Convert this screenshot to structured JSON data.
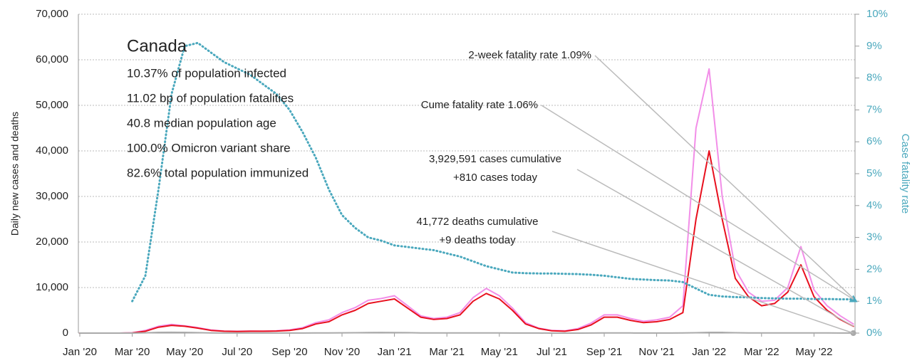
{
  "chart_data": {
    "type": "line",
    "categories": [
      "Jan '20",
      null,
      null,
      null,
      "Mar '20",
      null,
      null,
      null,
      "May '20",
      null,
      null,
      null,
      "Jul '20",
      null,
      null,
      null,
      "Sep '20",
      null,
      null,
      null,
      "Nov '20",
      null,
      null,
      null,
      "Jan '21",
      null,
      null,
      null,
      "Mar '21",
      null,
      null,
      null,
      "May '21",
      null,
      null,
      null,
      "Jul '21",
      null,
      null,
      null,
      "Sep '21",
      null,
      null,
      null,
      "Nov '21",
      null,
      null,
      null,
      "Jan '22",
      null,
      null,
      null,
      "Mar '22",
      null,
      null,
      null,
      "May '22",
      null,
      null,
      null
    ],
    "series": [
      {
        "color": "#f28ee8",
        "values": [
          0,
          0,
          0,
          0,
          80,
          600,
          1500,
          1900,
          1600,
          1200,
          700,
          450,
          400,
          450,
          420,
          500,
          700,
          1200,
          2300,
          2900,
          4500,
          5600,
          7200,
          7600,
          8200,
          6000,
          3800,
          3200,
          3500,
          4500,
          7800,
          9800,
          8200,
          5500,
          2300,
          1100,
          600,
          500,
          1000,
          2200,
          4000,
          4000,
          3200,
          2600,
          2900,
          3500,
          6000,
          45000,
          58000,
          30000,
          14000,
          9000,
          7000,
          7200,
          10000,
          19000,
          9500,
          6000,
          3800,
          2000
        ]
      },
      {
        "color": "#e8101e",
        "values": [
          0,
          0,
          0,
          0,
          50,
          400,
          1300,
          1700,
          1500,
          1100,
          600,
          400,
          350,
          400,
          400,
          450,
          600,
          1000,
          2000,
          2500,
          4000,
          5000,
          6500,
          7000,
          7500,
          5500,
          3500,
          3000,
          3200,
          4000,
          7000,
          8700,
          7500,
          5000,
          2000,
          1000,
          500,
          400,
          800,
          1800,
          3500,
          3500,
          2800,
          2300,
          2500,
          3000,
          4500,
          25000,
          40000,
          25000,
          12000,
          8000,
          6000,
          6500,
          9000,
          15000,
          8000,
          5000,
          3000,
          1500
        ]
      },
      {
        "color": "#aaaaaa",
        "values": [
          0,
          0,
          0,
          0,
          5,
          60,
          150,
          170,
          150,
          100,
          50,
          20,
          10,
          10,
          10,
          10,
          10,
          20,
          30,
          40,
          60,
          80,
          120,
          140,
          130,
          90,
          50,
          40,
          30,
          30,
          40,
          50,
          40,
          20,
          15,
          10,
          5,
          5,
          5,
          20,
          30,
          30,
          25,
          20,
          20,
          20,
          30,
          80,
          150,
          150,
          80,
          40,
          30,
          30,
          40,
          50,
          40,
          30,
          20,
          10
        ]
      },
      {
        "color": "#4aa8bd",
        "axis": "y2",
        "dotted": true,
        "values": [
          null,
          null,
          null,
          null,
          1.0,
          1.8,
          4.5,
          7.5,
          9.0,
          9.1,
          8.8,
          8.5,
          8.3,
          8.1,
          7.8,
          7.5,
          7.0,
          6.3,
          5.5,
          4.5,
          3.7,
          3.3,
          3.0,
          2.9,
          2.75,
          2.7,
          2.65,
          2.6,
          2.5,
          2.4,
          2.25,
          2.1,
          2.0,
          1.9,
          1.88,
          1.87,
          1.87,
          1.86,
          1.85,
          1.83,
          1.8,
          1.75,
          1.7,
          1.68,
          1.66,
          1.65,
          1.6,
          1.4,
          1.2,
          1.15,
          1.13,
          1.12,
          1.1,
          1.09,
          1.08,
          1.08,
          1.07,
          1.07,
          1.06,
          1.06
        ]
      }
    ],
    "ylabel": "Daily new cases and deaths",
    "y2label": "Case fatality rate",
    "ylim": [
      0,
      70000
    ],
    "yticks": [
      0,
      {
        "value": 10000,
        "label": "10,000"
      },
      {
        "value": 20000,
        "label": "20,000"
      },
      {
        "value": 30000,
        "label": "30,000"
      },
      {
        "value": 40000,
        "label": "40,000"
      },
      {
        "value": 50000,
        "label": "50,000"
      },
      {
        "value": 60000,
        "label": "60,000"
      },
      {
        "value": 70000,
        "label": "70,000"
      }
    ],
    "y2lim": [
      0,
      10
    ],
    "y2ticks": [
      {
        "value": 0,
        "label": "0%"
      },
      {
        "value": 1,
        "label": "1%"
      },
      {
        "value": 2,
        "label": "2%"
      },
      {
        "value": 3,
        "label": "3%"
      },
      {
        "value": 4,
        "label": "4%"
      },
      {
        "value": 5,
        "label": "5%"
      },
      {
        "value": 6,
        "label": "6%"
      },
      {
        "value": 7,
        "label": "7%"
      },
      {
        "value": 8,
        "label": "8%"
      },
      {
        "value": 9,
        "label": "9%"
      },
      {
        "value": 10,
        "label": "10%"
      }
    ],
    "grid": true,
    "info": {
      "title": "Canada",
      "lines": [
        "10.37% of population infected",
        "11.02 bp of population fatalities",
        "40.8 median population age",
        "100.0% Omicron variant share",
        "82.6% total population immunized"
      ]
    },
    "annotations": [
      [
        "2-week fatality rate 1.09%"
      ],
      [
        "Cume fatality rate 1.06%"
      ],
      [
        "3,929,591 cases cumulative",
        "+810 cases today"
      ],
      [
        "41,772 deaths cumulative",
        "+9 deaths today"
      ]
    ]
  }
}
